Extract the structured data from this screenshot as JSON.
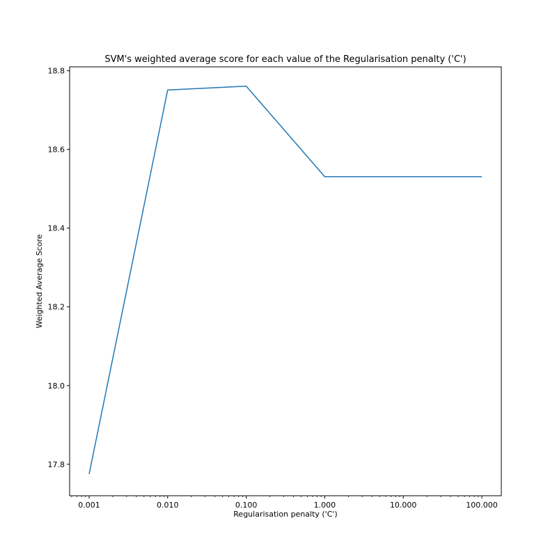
{
  "chart_data": {
    "type": "line",
    "title": "SVM's weighted average score for each value of the Regularisation penalty ('C')",
    "xlabel": "Regularisation penalty ('C')",
    "ylabel": "Weighted Average Score",
    "x_scale": "log",
    "x": [
      0.001,
      0.01,
      0.1,
      1,
      10,
      100
    ],
    "x_tick_labels": [
      "0.001",
      "0.010",
      "0.100",
      "1.000",
      "10.000",
      "100.000"
    ],
    "y_ticks": [
      17.8,
      18.0,
      18.2,
      18.4,
      18.6,
      18.8
    ],
    "y_tick_labels": [
      "17.8",
      "18.0",
      "18.2",
      "18.4",
      "18.6",
      "18.8"
    ],
    "ylim": [
      17.72,
      18.81
    ],
    "grid": false,
    "series": [
      {
        "color": "#1f77b4",
        "values": [
          17.775,
          18.751,
          18.761,
          18.531,
          18.531,
          18.531
        ]
      }
    ]
  }
}
